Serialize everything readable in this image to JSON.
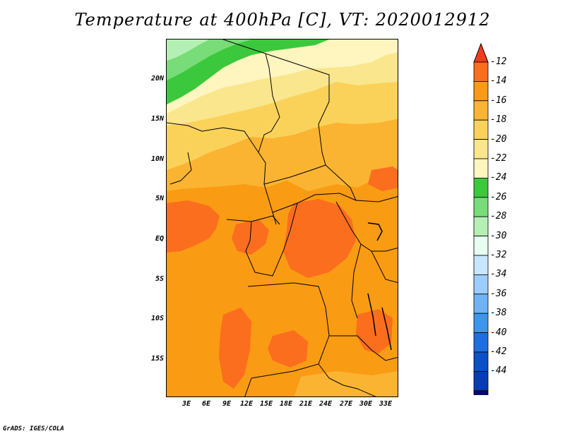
{
  "title": "Temperature at 400hPa [C], VT: 2020012912",
  "credit": "GrADS: IGES/COLA",
  "lat_labels": [
    "20N",
    "15N",
    "10N",
    "5N",
    "EQ",
    "5S",
    "10S",
    "15S"
  ],
  "lon_labels": [
    "3E",
    "6E",
    "9E",
    "12E",
    "15E",
    "18E",
    "21E",
    "24E",
    "27E",
    "30E",
    "33E"
  ],
  "colorbar": {
    "labels": [
      "-12",
      "-14",
      "-16",
      "-18",
      "-20",
      "-22",
      "-24",
      "-26",
      "-28",
      "-30",
      "-32",
      "-34",
      "-36",
      "-38",
      "-40",
      "-42",
      "-44"
    ],
    "colors": [
      "#f03c1e",
      "#fa6e1e",
      "#fa9b14",
      "#fab432",
      "#fad25a",
      "#fae68c",
      "#fff5be",
      "#3cc83c",
      "#78dc78",
      "#b4f0b4",
      "#e6fff0",
      "#c8e6ff",
      "#9bcdff",
      "#6eb4f5",
      "#3c96eb",
      "#1e6ee1",
      "#0a50c8",
      "#083cb4",
      "#050a6e",
      "#e6e6ff"
    ]
  },
  "map_fill_colors": {
    "orange_dark": "#fa6e1e",
    "orange": "#fa9b14",
    "orange_light": "#fab432",
    "yellow": "#fad25a",
    "pale_yellow": "#fae68c",
    "cream": "#fff5be",
    "green": "#3cc83c",
    "green_light": "#78dc78",
    "green_pale": "#b4f0b4"
  }
}
